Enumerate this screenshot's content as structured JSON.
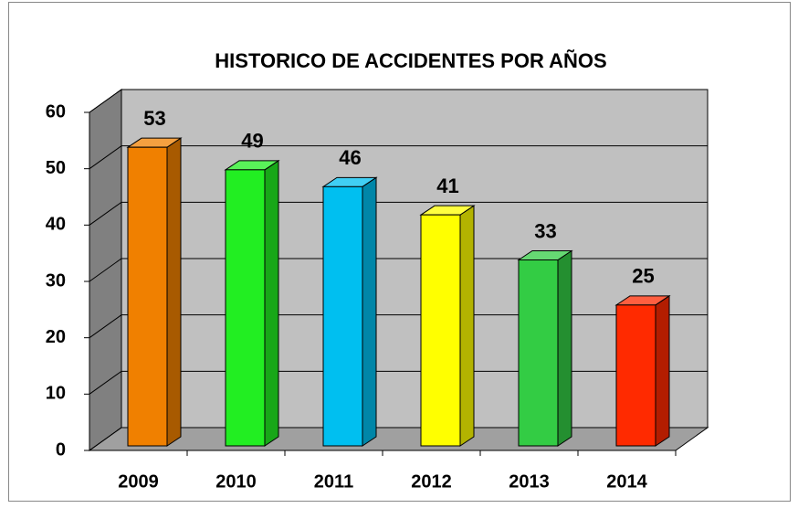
{
  "chart_data": {
    "type": "bar3d",
    "title": "HISTORICO DE ACCIDENTES POR AÑOS",
    "categories": [
      "2009",
      "2010",
      "2011",
      "2012",
      "2013",
      "2014"
    ],
    "values": [
      53,
      49,
      46,
      41,
      33,
      25
    ],
    "colors": [
      "#f08000",
      "#22ee22",
      "#00bff0",
      "#ffff00",
      "#33cc44",
      "#ff2a00"
    ],
    "ylim": [
      0,
      60
    ],
    "yticks": [
      0,
      10,
      20,
      30,
      40,
      50,
      60
    ],
    "grid": true
  }
}
